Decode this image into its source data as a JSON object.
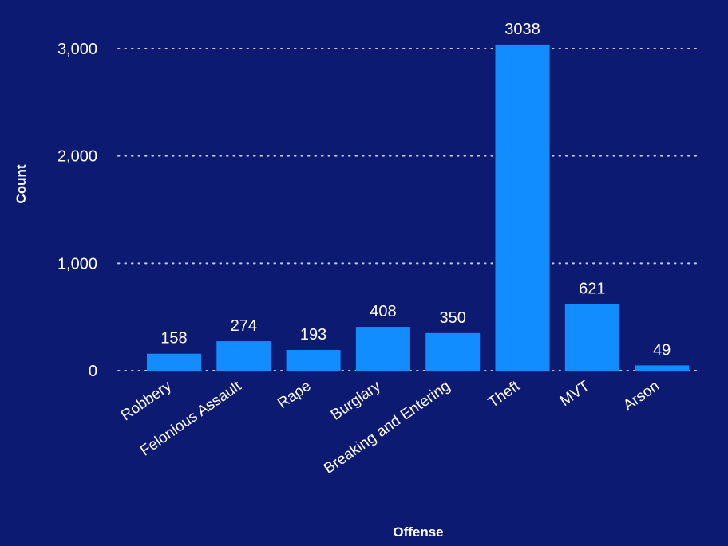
{
  "chart_data": {
    "type": "bar",
    "categories": [
      "Robbery",
      "Felonious Assault",
      "Rape",
      "Burglary",
      "Breaking and Entering",
      "Theft",
      "MVT",
      "Arson"
    ],
    "values": [
      158,
      274,
      193,
      408,
      350,
      3038,
      621,
      49
    ],
    "data_labels": [
      "158",
      "274",
      "193",
      "408",
      "350",
      "3038",
      "621",
      "49"
    ],
    "xlabel": "Offense",
    "ylabel": "Count",
    "ylim": [
      0,
      3000
    ],
    "yticks": [
      0,
      1000,
      2000,
      3000
    ],
    "ytick_labels": [
      "0",
      "1,000",
      "2,000",
      "3,000"
    ],
    "grid": true,
    "legend": "none"
  },
  "colors": {
    "background": "#0d1a72",
    "bar": "#118dff",
    "text": "#ffffff",
    "grid": "#c8cde8"
  }
}
